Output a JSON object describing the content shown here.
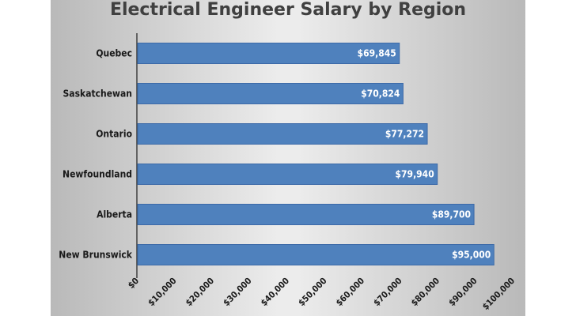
{
  "chart_data": {
    "type": "bar",
    "orientation": "horizontal",
    "title": "Electrical Engineer Salary by Region",
    "categories": [
      "Quebec",
      "Saskatchewan",
      "Ontario",
      "Newfoundland",
      "Alberta",
      "New Brunswick"
    ],
    "values": [
      69845,
      70824,
      77272,
      79940,
      89700,
      95000
    ],
    "value_labels": [
      "$69,845",
      "$70,824",
      "$77,272",
      "$79,940",
      "$89,700",
      "$95,000"
    ],
    "xlim": [
      0,
      100000
    ],
    "x_ticks": [
      0,
      10000,
      20000,
      30000,
      40000,
      50000,
      60000,
      70000,
      80000,
      90000,
      100000
    ],
    "x_tick_labels": [
      "$0",
      "$10,000",
      "$20,000",
      "$30,000",
      "$40,000",
      "$50,000",
      "$60,000",
      "$70,000",
      "$80,000",
      "$90,000",
      "$100,000"
    ],
    "xlabel": "",
    "ylabel": "",
    "grid": false,
    "legend": "none",
    "colors": {
      "bar": "#4f81bd",
      "bar_edge": "#3d6aa8",
      "axis": "#404040"
    }
  }
}
